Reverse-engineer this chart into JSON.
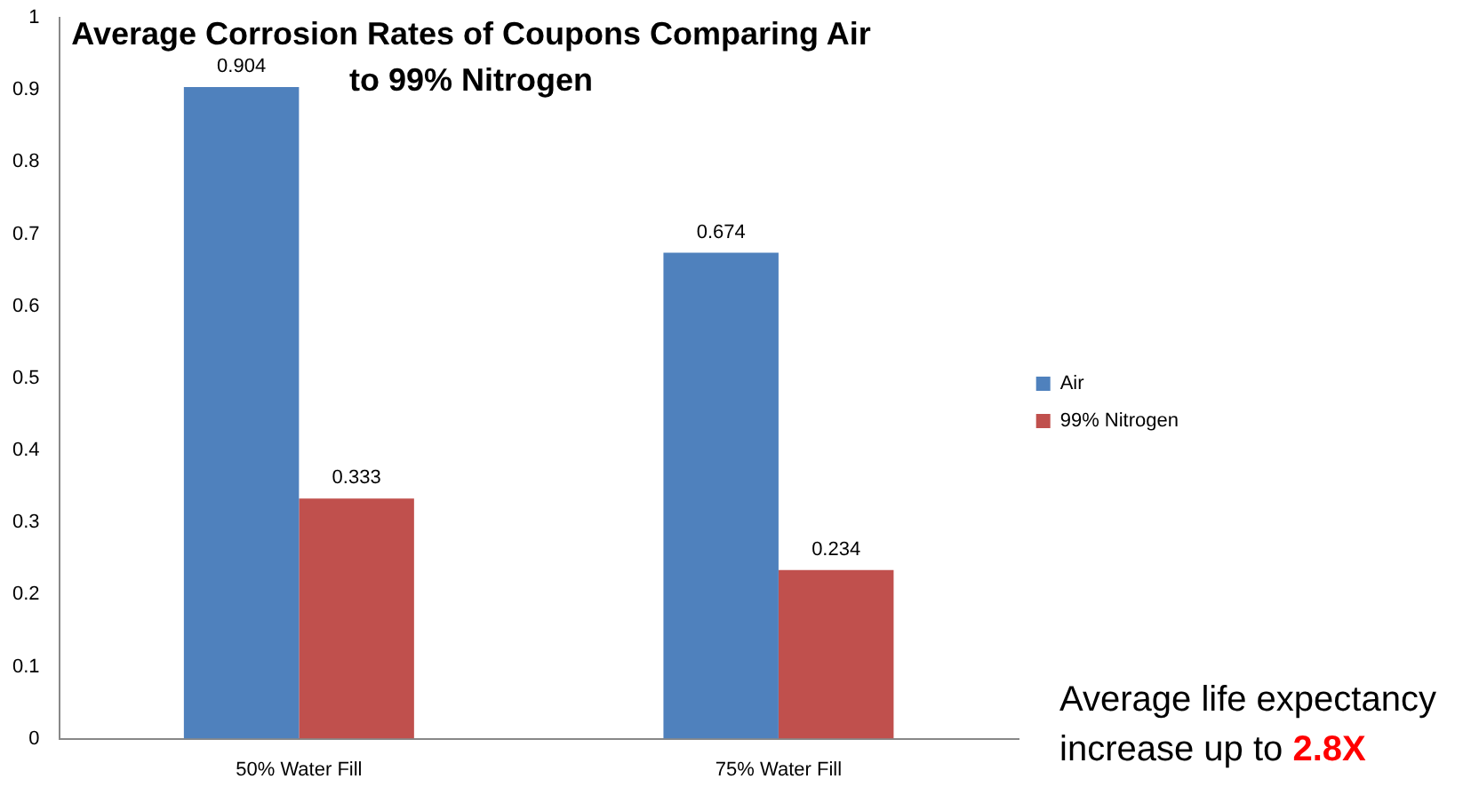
{
  "chart_data": {
    "type": "bar",
    "title": "Average Corrosion Rates of Coupons Comparing Air to 99% Nitrogen",
    "categories": [
      "50% Water Fill",
      "75% Water Fill"
    ],
    "series": [
      {
        "name": "Air",
        "color": "#4f81bd",
        "values": [
          0.904,
          0.674
        ]
      },
      {
        "name": "99% Nitrogen",
        "color": "#c0504d",
        "values": [
          0.333,
          0.234
        ]
      }
    ],
    "ylim": [
      0,
      1
    ],
    "yticks": [
      0,
      0.1,
      0.2,
      0.3,
      0.4,
      0.5,
      0.6,
      0.7,
      0.8,
      0.9,
      1
    ],
    "grid": false,
    "legend": "right",
    "data_labels": true,
    "annotations": [
      "Average life expectancy increase up to",
      "2.8X"
    ]
  }
}
